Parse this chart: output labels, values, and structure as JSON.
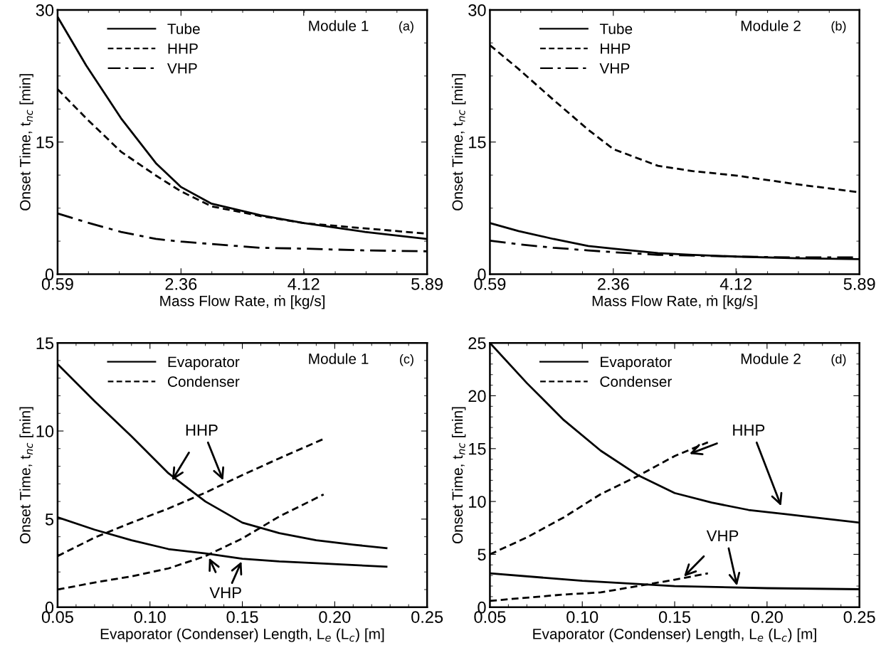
{
  "chart_data": [
    {
      "type": "line",
      "xlabel": "Mass Flow Rate, ṁ [kg/s]",
      "ylabel": "Onset Time, t$_{nc}$ [min]",
      "xlim": [
        0.59,
        5.89
      ],
      "xticks": [
        0.59,
        2.36,
        4.12,
        5.89
      ],
      "ylim": [
        0,
        30
      ],
      "yticks": [
        0,
        15,
        30
      ],
      "legend": "top left",
      "grid": false,
      "annotations": [
        "Module 1",
        "(a)"
      ],
      "series": [
        {
          "name": "Tube",
          "color": "#000000",
          "line_style": "solid",
          "x": [
            0.59,
            1.0,
            1.5,
            2.0,
            2.36,
            2.8,
            3.5,
            4.12,
            5.0,
            5.89
          ],
          "values": [
            29.2,
            23.7,
            17.7,
            12.6,
            9.9,
            8.0,
            6.7,
            5.8,
            4.8,
            4.0
          ]
        },
        {
          "name": "HHP",
          "color": "#000000",
          "line_style": "dashed",
          "x": [
            0.59,
            1.0,
            1.5,
            2.0,
            2.36,
            2.8,
            3.5,
            4.12,
            5.0,
            5.89
          ],
          "values": [
            21.0,
            17.7,
            13.9,
            11.2,
            9.4,
            7.7,
            6.6,
            5.8,
            5.2,
            4.6
          ]
        },
        {
          "name": "VHP",
          "color": "#000000",
          "line_style": "dashdot",
          "x": [
            0.59,
            1.0,
            1.5,
            2.0,
            2.36,
            3.0,
            3.5,
            4.12,
            5.0,
            5.89
          ],
          "values": [
            6.9,
            5.9,
            4.8,
            4.0,
            3.7,
            3.3,
            3.0,
            2.9,
            2.7,
            2.6
          ]
        }
      ]
    },
    {
      "type": "line",
      "xlabel": "Mass Flow Rate, ṁ [kg/s]",
      "ylabel": "Onset Time, t$_{nc}$ [min]",
      "xlim": [
        0.59,
        5.89
      ],
      "xticks": [
        0.59,
        2.36,
        4.12,
        5.89
      ],
      "ylim": [
        0,
        30
      ],
      "yticks": [
        0,
        15,
        30
      ],
      "legend": "top left",
      "grid": false,
      "annotations": [
        "Module 2",
        "(b)"
      ],
      "series": [
        {
          "name": "Tube",
          "color": "#000000",
          "line_style": "solid",
          "x": [
            0.59,
            1.0,
            1.5,
            2.0,
            2.36,
            3.0,
            3.5,
            4.12,
            5.0,
            5.89
          ],
          "values": [
            5.8,
            4.9,
            4.0,
            3.2,
            2.9,
            2.4,
            2.2,
            2.0,
            1.8,
            1.7
          ]
        },
        {
          "name": "HHP",
          "color": "#000000",
          "line_style": "dashed",
          "x": [
            0.59,
            1.0,
            1.5,
            2.0,
            2.36,
            3.0,
            3.5,
            4.12,
            5.0,
            5.89
          ],
          "values": [
            26.0,
            23.3,
            19.8,
            16.4,
            14.2,
            12.3,
            11.7,
            11.2,
            10.2,
            9.3
          ]
        },
        {
          "name": "VHP",
          "color": "#000000",
          "line_style": "dashdot",
          "x": [
            0.59,
            1.0,
            1.5,
            2.0,
            2.36,
            3.0,
            4.12,
            5.0,
            5.89
          ],
          "values": [
            3.8,
            3.4,
            3.0,
            2.7,
            2.5,
            2.2,
            2.0,
            1.9,
            1.9
          ]
        }
      ]
    },
    {
      "type": "line",
      "xlabel": "Evaporator (Condenser) Length, L$_{e}$ (L$_{c}$) [m]",
      "ylabel": "Onset Time, t$_{nc}$ [min]",
      "xlim": [
        0.05,
        0.25
      ],
      "xticks": [
        {
          "value": 0.05,
          "label": "0.05"
        },
        {
          "value": 0.1,
          "label": "0.10"
        },
        {
          "value": 0.15,
          "label": "0.15"
        },
        {
          "value": 0.2,
          "label": "0.20"
        },
        {
          "value": 0.25,
          "label": "0.25"
        }
      ],
      "ylim": [
        0,
        15
      ],
      "yticks": [
        0,
        5,
        10,
        15
      ],
      "legend": "top left",
      "grid": false,
      "annotations": [
        "Module 1",
        "(c)",
        {
          "text": "HHP",
          "x": 0.112,
          "y": 7.2
        },
        {
          "text": "VHP",
          "x": 0.132,
          "y": 2.8
        }
      ],
      "series": [
        {
          "name": "Evaporator",
          "color": "#000000",
          "line_style": "solid",
          "x": [
            0.05,
            0.07,
            0.09,
            0.11,
            0.13,
            0.15,
            0.17,
            0.19,
            0.21,
            0.228
          ],
          "values": [
            13.8,
            11.7,
            9.7,
            7.6,
            6.0,
            4.8,
            4.2,
            3.8,
            3.55,
            3.35
          ]
        },
        {
          "color": "#000000",
          "line_style": "solid",
          "x": [
            0.05,
            0.07,
            0.09,
            0.11,
            0.13,
            0.15,
            0.17,
            0.19,
            0.228
          ],
          "values": [
            5.1,
            4.4,
            3.8,
            3.3,
            3.05,
            2.75,
            2.6,
            2.5,
            2.3
          ]
        },
        {
          "name": "Condenser",
          "color": "#000000",
          "line_style": "dashed",
          "x": [
            0.05,
            0.07,
            0.09,
            0.11,
            0.13,
            0.15,
            0.17,
            0.194
          ],
          "values": [
            2.9,
            3.95,
            4.8,
            5.6,
            6.5,
            7.5,
            8.45,
            9.55
          ]
        },
        {
          "color": "#000000",
          "line_style": "dashed",
          "x": [
            0.05,
            0.07,
            0.09,
            0.11,
            0.13,
            0.15,
            0.17,
            0.194
          ],
          "values": [
            1.0,
            1.4,
            1.75,
            2.2,
            2.9,
            3.9,
            5.15,
            6.4
          ]
        }
      ]
    },
    {
      "type": "line",
      "xlabel": "Evaporator (Condenser) Length, L$_{e}$ (L$_{c}$) [m]",
      "ylabel": "Onset Time, t$_{nc}$ [min]",
      "xlim": [
        0.05,
        0.25
      ],
      "xticks": [
        {
          "value": 0.05,
          "label": "0.05"
        },
        {
          "value": 0.1,
          "label": "0.10"
        },
        {
          "value": 0.15,
          "label": "0.15"
        },
        {
          "value": 0.2,
          "label": "0.20"
        },
        {
          "value": 0.25,
          "label": "0.25"
        }
      ],
      "ylim": [
        0,
        25
      ],
      "yticks": [
        0,
        5,
        10,
        15,
        20,
        25
      ],
      "legend": "top left",
      "grid": false,
      "annotations": [
        "Module 2",
        "(d)",
        {
          "text": "HHP",
          "x": 0.158,
          "y": 14.5
        },
        {
          "text": "VHP",
          "x": 0.155,
          "y": 2.9
        }
      ],
      "series": [
        {
          "name": "Evaporator",
          "color": "#000000",
          "line_style": "solid",
          "x": [
            0.05,
            0.07,
            0.09,
            0.11,
            0.13,
            0.15,
            0.17,
            0.19,
            0.21,
            0.23,
            0.25
          ],
          "values": [
            25.0,
            21.2,
            17.7,
            14.8,
            12.5,
            10.8,
            9.9,
            9.2,
            8.8,
            8.4,
            8.0
          ]
        },
        {
          "color": "#000000",
          "line_style": "solid",
          "x": [
            0.05,
            0.1,
            0.15,
            0.2,
            0.25
          ],
          "values": [
            3.2,
            2.5,
            2.0,
            1.8,
            1.7
          ]
        },
        {
          "name": "Condenser",
          "color": "#000000",
          "line_style": "dashed",
          "x": [
            0.05,
            0.07,
            0.09,
            0.11,
            0.13,
            0.15,
            0.168
          ],
          "values": [
            5.0,
            6.6,
            8.5,
            10.7,
            12.4,
            14.3,
            15.6
          ]
        },
        {
          "color": "#000000",
          "line_style": "dashed",
          "x": [
            0.05,
            0.07,
            0.09,
            0.11,
            0.13,
            0.15,
            0.168
          ],
          "values": [
            0.6,
            0.9,
            1.2,
            1.4,
            2.0,
            2.6,
            3.2
          ]
        }
      ]
    }
  ]
}
